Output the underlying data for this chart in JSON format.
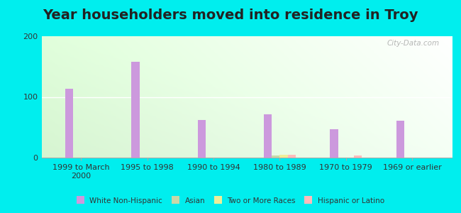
{
  "title": "Year householders moved into residence in Troy",
  "categories": [
    "1999 to March\n2000",
    "1995 to 1998",
    "1990 to 1994",
    "1980 to 1989",
    "1970 to 1979",
    "1969 or earlier"
  ],
  "series": {
    "White Non-Hispanic": [
      113,
      158,
      62,
      71,
      47,
      61
    ],
    "Asian": [
      0,
      0,
      0,
      4,
      0,
      0
    ],
    "Two or More Races": [
      0,
      0,
      0,
      5,
      0,
      0
    ],
    "Hispanic or Latino": [
      0,
      0,
      0,
      5,
      4,
      0
    ]
  },
  "colors": {
    "White Non-Hispanic": "#cc99dd",
    "Asian": "#c8d8a8",
    "Two or More Races": "#eeee99",
    "Hispanic or Latino": "#ffbbbb"
  },
  "ylim": [
    0,
    200
  ],
  "yticks": [
    0,
    100,
    200
  ],
  "bar_width": 0.12,
  "background_outer": "#00eeee",
  "watermark": "City-Data.com",
  "title_fontsize": 14,
  "tick_fontsize": 8
}
